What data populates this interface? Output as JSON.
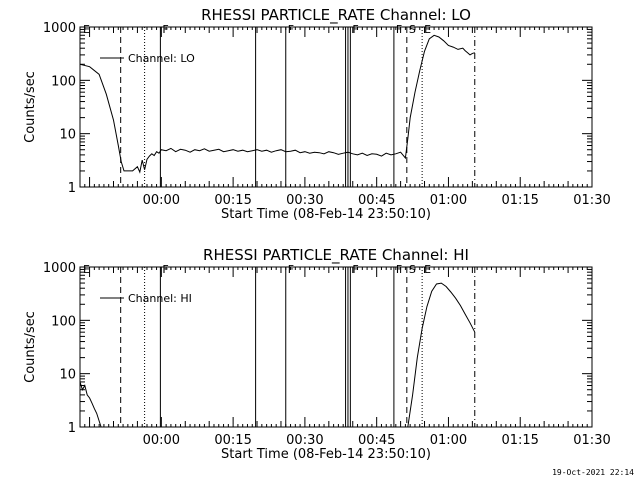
{
  "timestamp": "19-Oct-2021 22:14",
  "chart_data": [
    {
      "type": "line",
      "title": "RHESSI PARTICLE_RATE Channel: LO",
      "xlabel": "Start Time (08-Feb-14 23:50:10)",
      "ylabel": "Counts/sec",
      "x_unit": "minutes since 23:50:10",
      "xlim": [
        -7,
        100
      ],
      "ylim": [
        1,
        1000
      ],
      "y_scale": "log",
      "xticks": [
        [
          "00:00",
          10
        ],
        [
          "00:15",
          25
        ],
        [
          "00:30",
          40
        ],
        [
          "00:45",
          55
        ],
        [
          "01:00",
          70
        ],
        [
          "01:15",
          85
        ],
        [
          "01:30",
          100
        ]
      ],
      "yticks": [
        [
          "1",
          1
        ],
        [
          "10",
          10
        ],
        [
          "100",
          100
        ],
        [
          "1000",
          1000
        ]
      ],
      "legend": {
        "label": "Channel: LO",
        "placement": "top-left"
      },
      "markers": [
        {
          "x": -6.8,
          "style": "none",
          "label": "E"
        },
        {
          "x": 1.5,
          "style": "dashed",
          "label": ""
        },
        {
          "x": 6.5,
          "style": "dotted",
          "label": ""
        },
        {
          "x": 9.8,
          "style": "solid",
          "label": "F"
        },
        {
          "x": 29.7,
          "style": "solid",
          "label": ""
        },
        {
          "x": 36.0,
          "style": "solid",
          "label": "F"
        },
        {
          "x": 48.5,
          "style": "solid",
          "label": ""
        },
        {
          "x": 49.0,
          "style": "solid",
          "label": ""
        },
        {
          "x": 49.5,
          "style": "solid",
          "label": "F"
        },
        {
          "x": 58.6,
          "style": "solid",
          "label": "F"
        },
        {
          "x": 61.3,
          "style": "dashed",
          "label": "S"
        },
        {
          "x": 64.5,
          "style": "dotted",
          "label": "E"
        },
        {
          "x": 75.5,
          "style": "dashdot",
          "label": ""
        }
      ],
      "series": [
        {
          "x": [
            -7,
            -5,
            -3,
            -1.5,
            0,
            1,
            1.6,
            2.2,
            3,
            4,
            5,
            5.5,
            6,
            6.5,
            7,
            7.5,
            8,
            8.5,
            9,
            9.5,
            10,
            11,
            12,
            13,
            14,
            15,
            16,
            17,
            18,
            19,
            20,
            21,
            22,
            23,
            24,
            25,
            26,
            27,
            28,
            29,
            30,
            31,
            32,
            33,
            34,
            35,
            36,
            37,
            38,
            39,
            40,
            41,
            42,
            43,
            44,
            45,
            46,
            47,
            48,
            49,
            50,
            51,
            52,
            53,
            54,
            55,
            56,
            57,
            58,
            59,
            60,
            61,
            61.5,
            62,
            63,
            64,
            65,
            66,
            67,
            68,
            69,
            70,
            71,
            72,
            73,
            73.5,
            74,
            74.5,
            75,
            75.5
          ],
          "values": [
            200,
            180,
            130,
            55,
            18,
            6,
            3,
            2,
            2,
            2,
            2.4,
            1.9,
            3.2,
            2.1,
            3.3,
            3.8,
            4.2,
            3.9,
            4.6,
            4.3,
            5.0,
            4.8,
            5.3,
            4.6,
            5.1,
            4.9,
            4.5,
            5.0,
            4.8,
            5.2,
            4.7,
            4.9,
            5.1,
            4.6,
            4.8,
            5.0,
            4.7,
            4.9,
            4.6,
            4.8,
            5.0,
            4.7,
            4.9,
            4.5,
            4.8,
            5.0,
            4.6,
            4.7,
            4.9,
            4.4,
            4.6,
            4.3,
            4.5,
            4.4,
            4.2,
            4.6,
            4.4,
            4.1,
            4.3,
            4.5,
            4.2,
            4.0,
            4.3,
            3.9,
            4.2,
            4.1,
            3.8,
            4.3,
            4.0,
            4.2,
            4.5,
            3.5,
            8,
            20,
            60,
            150,
            350,
            600,
            700,
            650,
            550,
            450,
            420,
            380,
            400,
            360,
            330,
            300,
            320,
            330
          ]
        }
      ]
    },
    {
      "type": "line",
      "title": "RHESSI PARTICLE_RATE Channel: HI",
      "xlabel": "Start Time (08-Feb-14 23:50:10)",
      "ylabel": "Counts/sec",
      "x_unit": "minutes since 23:50:10",
      "xlim": [
        -7,
        100
      ],
      "ylim": [
        1,
        1000
      ],
      "y_scale": "log",
      "xticks": [
        [
          "00:00",
          10
        ],
        [
          "00:15",
          25
        ],
        [
          "00:30",
          40
        ],
        [
          "00:45",
          55
        ],
        [
          "01:00",
          70
        ],
        [
          "01:15",
          85
        ],
        [
          "01:30",
          100
        ]
      ],
      "yticks": [
        [
          "1",
          1
        ],
        [
          "10",
          10
        ],
        [
          "100",
          100
        ],
        [
          "1000",
          1000
        ]
      ],
      "legend": {
        "label": "Channel: HI",
        "placement": "top-left"
      },
      "markers": [
        {
          "x": -6.8,
          "style": "none",
          "label": "E"
        },
        {
          "x": 1.5,
          "style": "dashed",
          "label": ""
        },
        {
          "x": 6.5,
          "style": "dotted",
          "label": ""
        },
        {
          "x": 9.8,
          "style": "solid",
          "label": "F"
        },
        {
          "x": 29.7,
          "style": "solid",
          "label": ""
        },
        {
          "x": 36.0,
          "style": "solid",
          "label": "F"
        },
        {
          "x": 48.5,
          "style": "solid",
          "label": ""
        },
        {
          "x": 49.0,
          "style": "solid",
          "label": ""
        },
        {
          "x": 49.5,
          "style": "solid",
          "label": "F"
        },
        {
          "x": 58.6,
          "style": "solid",
          "label": "F"
        },
        {
          "x": 61.3,
          "style": "dashed",
          "label": "S"
        },
        {
          "x": 64.5,
          "style": "dotted",
          "label": "E"
        },
        {
          "x": 75.5,
          "style": "dashdot",
          "label": ""
        }
      ],
      "series": [
        {
          "x": [
            -7,
            -6.5,
            -6,
            -5.5,
            -5,
            -4.5,
            -4,
            -3.5,
            -3,
            -2.6
          ],
          "values": [
            7,
            5,
            6,
            4,
            3.5,
            2.8,
            2.2,
            1.8,
            1.3,
            1.0
          ]
        },
        {
          "x": [
            61.5,
            62.5,
            63.5,
            64.5,
            65.5,
            66.5,
            67.5,
            68.5,
            69.5,
            70.5,
            71.5,
            72.5,
            73.5,
            74.5,
            75.5
          ],
          "values": [
            1.0,
            4,
            20,
            70,
            180,
            350,
            480,
            500,
            430,
            340,
            260,
            190,
            130,
            90,
            60
          ]
        }
      ]
    }
  ]
}
